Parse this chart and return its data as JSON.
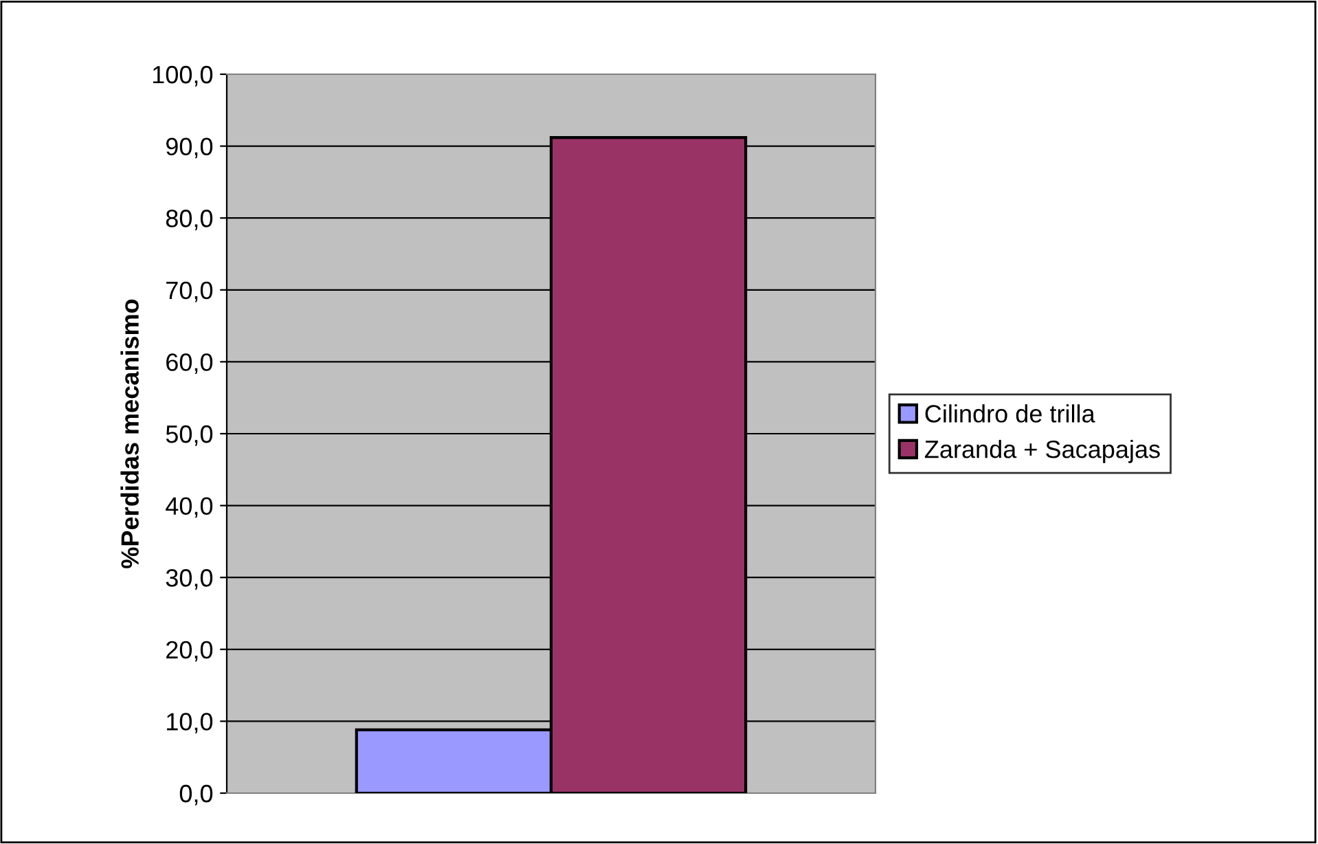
{
  "chart_data": {
    "type": "bar",
    "ylabel": "%Perdidas mecanismo",
    "categories": [
      null
    ],
    "series": [
      {
        "name": "Cilindro de trilla",
        "color": "#9999ff",
        "values": [
          8.8
        ]
      },
      {
        "name": "Zaranda + Sacapajas",
        "color": "#993366",
        "values": [
          91.2
        ]
      }
    ],
    "ylim": [
      0,
      100
    ],
    "yticks": [
      {
        "value": 0,
        "label": "0,0"
      },
      {
        "value": 10,
        "label": "10,0"
      },
      {
        "value": 20,
        "label": "20,0"
      },
      {
        "value": 30,
        "label": "30,0"
      },
      {
        "value": 40,
        "label": "40,0"
      },
      {
        "value": 50,
        "label": "50,0"
      },
      {
        "value": 60,
        "label": "60,0"
      },
      {
        "value": 70,
        "label": "70,0"
      },
      {
        "value": 80,
        "label": "80,0"
      },
      {
        "value": 90,
        "label": "90,0"
      },
      {
        "value": 100,
        "label": "100,0"
      }
    ],
    "grid": "y",
    "legend": "right"
  }
}
